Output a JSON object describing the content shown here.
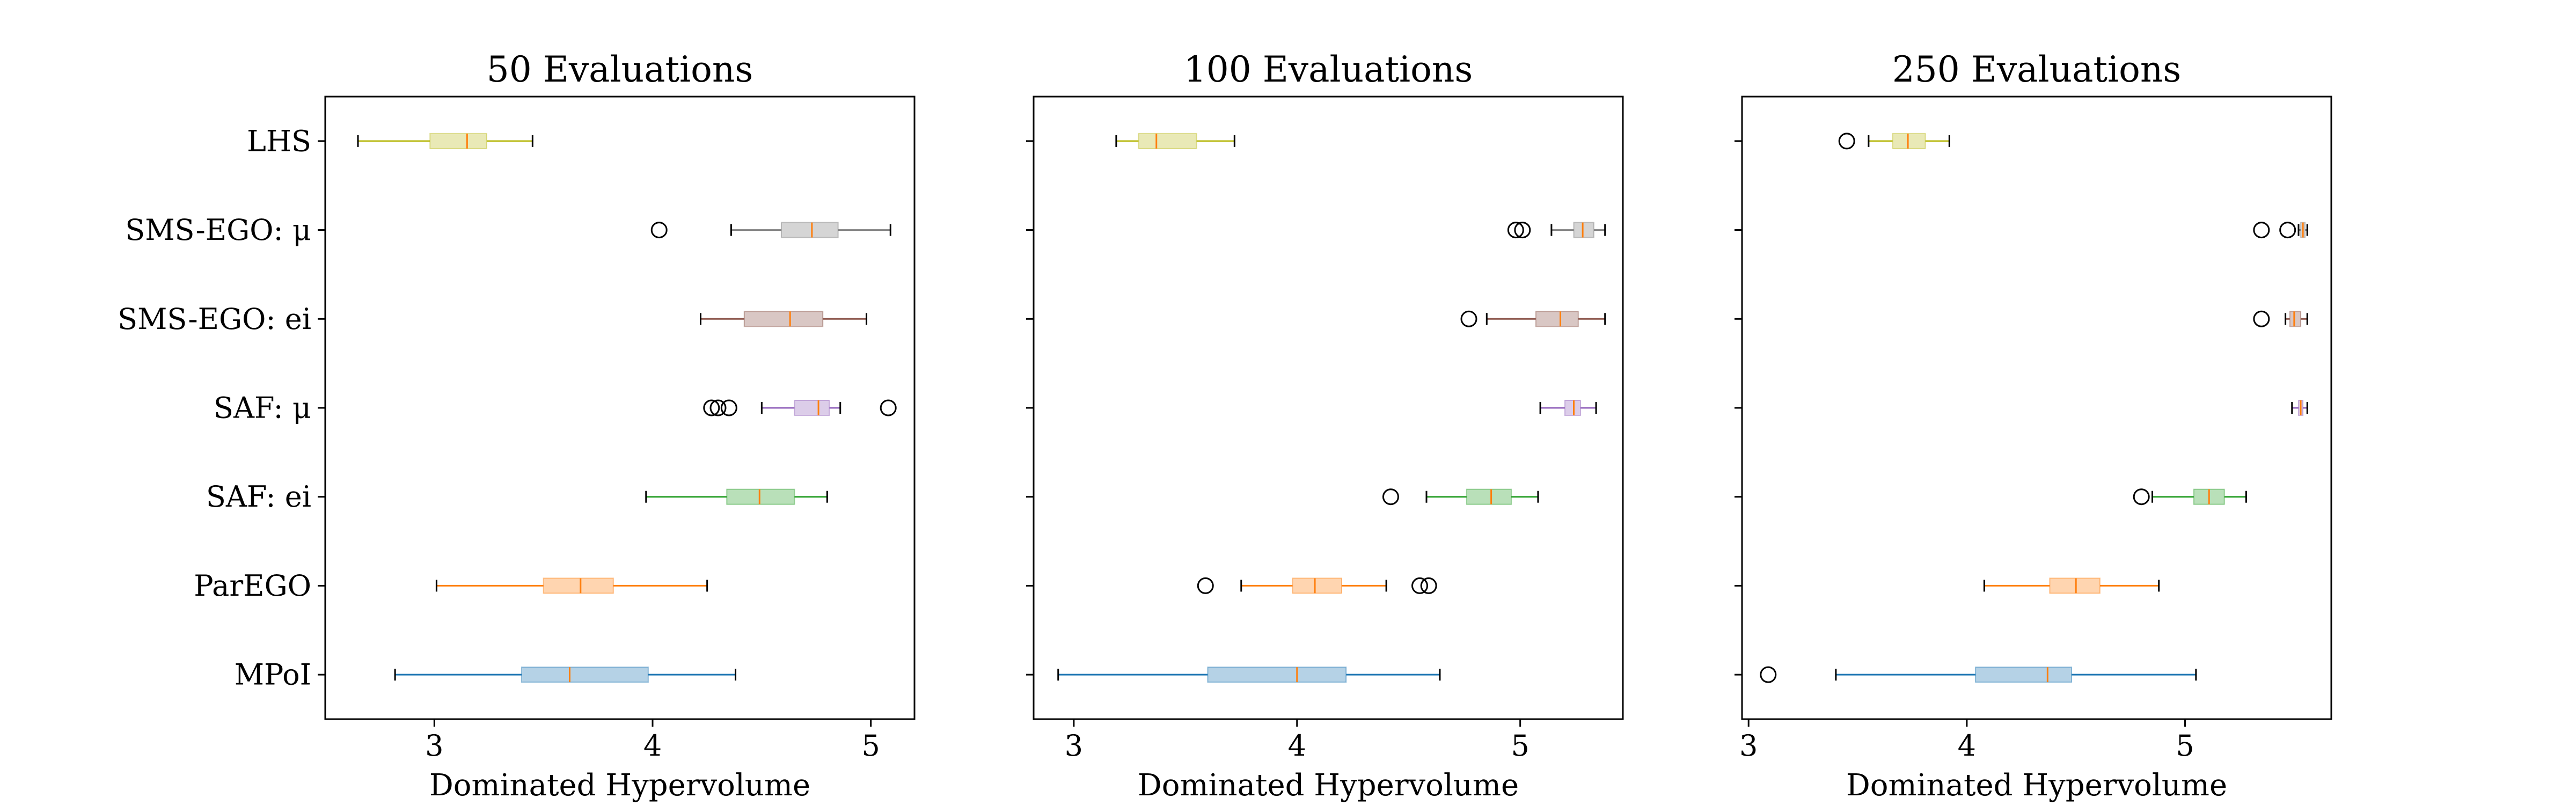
{
  "figure": {
    "categories": [
      "LHS",
      "SMS-EGO: μ",
      "SMS-EGO: ei",
      "SAF: μ",
      "SAF: ei",
      "ParEGO",
      "MPoI"
    ],
    "colors": [
      "#bcbd22",
      "#7f7f7f",
      "#8c564b",
      "#9467bd",
      "#2ca02c",
      "#ff7f0e",
      "#1f77b4"
    ],
    "median_color": "#ff7f0e"
  },
  "chart_data": [
    {
      "type": "box",
      "title": "50 Evaluations",
      "xlabel": "Dominated Hypervolume",
      "xlim": [
        2.5,
        5.2
      ],
      "xticks": [
        3,
        4,
        5
      ],
      "boxes": [
        {
          "name": "LHS",
          "whislo": 2.65,
          "q1": 2.98,
          "med": 3.15,
          "q3": 3.24,
          "whishi": 3.45,
          "fliers": []
        },
        {
          "name": "SMS-EGO: μ",
          "whislo": 4.36,
          "q1": 4.59,
          "med": 4.73,
          "q3": 4.85,
          "whishi": 5.09,
          "fliers": [
            4.03
          ]
        },
        {
          "name": "SMS-EGO: ei",
          "whislo": 4.22,
          "q1": 4.42,
          "med": 4.63,
          "q3": 4.78,
          "whishi": 4.98,
          "fliers": []
        },
        {
          "name": "SAF: μ",
          "whislo": 4.5,
          "q1": 4.65,
          "med": 4.76,
          "q3": 4.81,
          "whishi": 4.86,
          "fliers": [
            4.27,
            4.3,
            4.35,
            5.08
          ]
        },
        {
          "name": "SAF: ei",
          "whislo": 3.97,
          "q1": 4.34,
          "med": 4.49,
          "q3": 4.65,
          "whishi": 4.8,
          "fliers": []
        },
        {
          "name": "ParEGO",
          "whislo": 3.01,
          "q1": 3.5,
          "med": 3.67,
          "q3": 3.82,
          "whishi": 4.25,
          "fliers": []
        },
        {
          "name": "MPoI",
          "whislo": 2.82,
          "q1": 3.4,
          "med": 3.62,
          "q3": 3.98,
          "whishi": 4.38,
          "fliers": []
        }
      ]
    },
    {
      "type": "box",
      "title": "100 Evaluations",
      "xlabel": "Dominated Hypervolume",
      "xlim": [
        2.82,
        5.46
      ],
      "xticks": [
        3,
        4,
        5
      ],
      "boxes": [
        {
          "name": "LHS",
          "whislo": 3.19,
          "q1": 3.29,
          "med": 3.37,
          "q3": 3.55,
          "whishi": 3.72,
          "fliers": []
        },
        {
          "name": "SMS-EGO: μ",
          "whislo": 5.14,
          "q1": 5.24,
          "med": 5.28,
          "q3": 5.33,
          "whishi": 5.38,
          "fliers": [
            4.98,
            5.01
          ]
        },
        {
          "name": "SMS-EGO: ei",
          "whislo": 4.85,
          "q1": 5.07,
          "med": 5.18,
          "q3": 5.26,
          "whishi": 5.38,
          "fliers": [
            4.77
          ]
        },
        {
          "name": "SAF: μ",
          "whislo": 5.09,
          "q1": 5.2,
          "med": 5.24,
          "q3": 5.27,
          "whishi": 5.34,
          "fliers": []
        },
        {
          "name": "SAF: ei",
          "whislo": 4.58,
          "q1": 4.76,
          "med": 4.87,
          "q3": 4.96,
          "whishi": 5.08,
          "fliers": [
            4.42
          ]
        },
        {
          "name": "ParEGO",
          "whislo": 3.75,
          "q1": 3.98,
          "med": 4.08,
          "q3": 4.2,
          "whishi": 4.4,
          "fliers": [
            3.59,
            4.55,
            4.59
          ]
        },
        {
          "name": "MPoI",
          "whislo": 2.93,
          "q1": 3.6,
          "med": 4.0,
          "q3": 4.22,
          "whishi": 4.64,
          "fliers": []
        }
      ]
    },
    {
      "type": "box",
      "title": "250 Evaluations",
      "xlabel": "Dominated Hypervolume",
      "xlim": [
        2.97,
        5.67
      ],
      "xticks": [
        3,
        4,
        5
      ],
      "boxes": [
        {
          "name": "LHS",
          "whislo": 3.55,
          "q1": 3.66,
          "med": 3.73,
          "q3": 3.81,
          "whishi": 3.92,
          "fliers": [
            3.45
          ]
        },
        {
          "name": "SMS-EGO: μ",
          "whislo": 5.52,
          "q1": 5.53,
          "med": 5.54,
          "q3": 5.55,
          "whishi": 5.56,
          "fliers": [
            5.35,
            5.47
          ]
        },
        {
          "name": "SMS-EGO: ei",
          "whislo": 5.46,
          "q1": 5.48,
          "med": 5.5,
          "q3": 5.53,
          "whishi": 5.56,
          "fliers": [
            5.35
          ]
        },
        {
          "name": "SAF: μ",
          "whislo": 5.49,
          "q1": 5.52,
          "med": 5.53,
          "q3": 5.54,
          "whishi": 5.56,
          "fliers": []
        },
        {
          "name": "SAF: ei",
          "whislo": 4.85,
          "q1": 5.04,
          "med": 5.11,
          "q3": 5.18,
          "whishi": 5.28,
          "fliers": [
            4.8
          ]
        },
        {
          "name": "ParEGO",
          "whislo": 4.08,
          "q1": 4.38,
          "med": 4.5,
          "q3": 4.61,
          "whishi": 4.88,
          "fliers": []
        },
        {
          "name": "MPoI",
          "whislo": 3.4,
          "q1": 4.04,
          "med": 4.37,
          "q3": 4.48,
          "whishi": 5.05,
          "fliers": [
            3.09
          ]
        }
      ]
    }
  ]
}
